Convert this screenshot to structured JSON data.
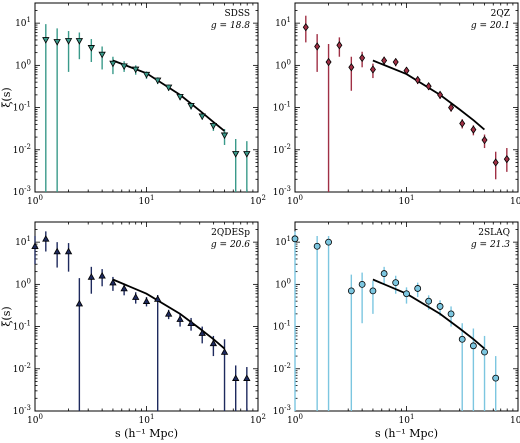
{
  "chart_data": [
    {
      "type": "scatter",
      "title": "",
      "label": "SDSS",
      "mag_text": "g = 18.8",
      "color": "#3a9a8a",
      "marker": "triangle-down",
      "xlabel": "s (h⁻¹ Mpc)",
      "ylabel": "ξ(s)",
      "xscale": "log",
      "yscale": "log",
      "xlim": [
        1,
        100
      ],
      "ylim": [
        0.001,
        30
      ],
      "points": [
        {
          "x": 1.25,
          "y": 4.0,
          "lo": 0.001,
          "hi": 9.5
        },
        {
          "x": 1.58,
          "y": 3.6,
          "lo": 0.001,
          "hi": 7.5
        },
        {
          "x": 2.0,
          "y": 3.8,
          "lo": 0.7,
          "hi": 6.5
        },
        {
          "x": 2.5,
          "y": 3.8,
          "lo": 1.4,
          "hi": 6.0
        },
        {
          "x": 3.2,
          "y": 2.6,
          "lo": 1.2,
          "hi": 4.2
        },
        {
          "x": 4.0,
          "y": 1.8,
          "lo": 0.8,
          "hi": 2.8
        },
        {
          "x": 5.0,
          "y": 1.1,
          "lo": 0.62,
          "hi": 1.6
        },
        {
          "x": 6.3,
          "y": 0.95,
          "lo": 0.7,
          "hi": 1.25
        },
        {
          "x": 8.0,
          "y": 0.8,
          "lo": 0.6,
          "hi": 1.0
        },
        {
          "x": 10.0,
          "y": 0.6,
          "lo": 0.48,
          "hi": 0.72
        },
        {
          "x": 12.6,
          "y": 0.44,
          "lo": 0.36,
          "hi": 0.52
        },
        {
          "x": 15.8,
          "y": 0.3,
          "lo": 0.25,
          "hi": 0.35
        },
        {
          "x": 20.0,
          "y": 0.18,
          "lo": 0.15,
          "hi": 0.21
        },
        {
          "x": 25.1,
          "y": 0.11,
          "lo": 0.09,
          "hi": 0.13
        },
        {
          "x": 31.6,
          "y": 0.062,
          "lo": 0.052,
          "hi": 0.074
        },
        {
          "x": 39.8,
          "y": 0.037,
          "lo": 0.028,
          "hi": 0.046
        },
        {
          "x": 50.1,
          "y": 0.022,
          "lo": 0.013,
          "hi": 0.031
        },
        {
          "x": 63.1,
          "y": 0.008,
          "lo": 0.001,
          "hi": 0.018
        },
        {
          "x": 79.4,
          "y": 0.008,
          "lo": 0.001,
          "hi": 0.016
        }
      ],
      "model": {
        "x": [
          5,
          10,
          20,
          30,
          40,
          50
        ],
        "y": [
          1.3,
          0.65,
          0.2,
          0.085,
          0.045,
          0.028
        ]
      }
    },
    {
      "type": "scatter",
      "title": "",
      "label": "2QZ",
      "mag_text": "g = 20.1",
      "color": "#a03045",
      "marker": "diamond",
      "xlabel": "s (h⁻¹ Mpc)",
      "ylabel": "ξ(s)",
      "xscale": "log",
      "yscale": "log",
      "xlim": [
        1,
        100
      ],
      "ylim": [
        0.001,
        30
      ],
      "points": [
        {
          "x": 1.25,
          "y": 8.0,
          "lo": 3.5,
          "hi": 15
        },
        {
          "x": 1.58,
          "y": 2.8,
          "lo": 0.7,
          "hi": 5.5
        },
        {
          "x": 2.0,
          "y": 1.2,
          "lo": 0.001,
          "hi": 3.2
        },
        {
          "x": 2.5,
          "y": 3.0,
          "lo": 1.6,
          "hi": 4.6
        },
        {
          "x": 3.2,
          "y": 0.9,
          "lo": 0.25,
          "hi": 1.6
        },
        {
          "x": 4.0,
          "y": 1.5,
          "lo": 0.9,
          "hi": 2.1
        },
        {
          "x": 5.0,
          "y": 0.8,
          "lo": 0.5,
          "hi": 1.1
        },
        {
          "x": 6.3,
          "y": 1.3,
          "lo": 1.0,
          "hi": 1.6
        },
        {
          "x": 8.0,
          "y": 1.2,
          "lo": 0.95,
          "hi": 1.45
        },
        {
          "x": 10.0,
          "y": 0.75,
          "lo": 0.6,
          "hi": 0.9
        },
        {
          "x": 12.6,
          "y": 0.45,
          "lo": 0.36,
          "hi": 0.54
        },
        {
          "x": 15.8,
          "y": 0.32,
          "lo": 0.26,
          "hi": 0.38
        },
        {
          "x": 20.0,
          "y": 0.2,
          "lo": 0.16,
          "hi": 0.24
        },
        {
          "x": 25.1,
          "y": 0.1,
          "lo": 0.08,
          "hi": 0.12
        },
        {
          "x": 31.6,
          "y": 0.042,
          "lo": 0.032,
          "hi": 0.053
        },
        {
          "x": 39.8,
          "y": 0.03,
          "lo": 0.022,
          "hi": 0.038
        },
        {
          "x": 50.1,
          "y": 0.017,
          "lo": 0.011,
          "hi": 0.023
        },
        {
          "x": 63.1,
          "y": 0.005,
          "lo": 0.002,
          "hi": 0.009
        },
        {
          "x": 79.4,
          "y": 0.006,
          "lo": 0.003,
          "hi": 0.011
        }
      ],
      "model": {
        "x": [
          5,
          10,
          20,
          30,
          40,
          50
        ],
        "y": [
          1.3,
          0.62,
          0.2,
          0.09,
          0.05,
          0.03
        ]
      }
    },
    {
      "type": "scatter",
      "title": "",
      "label": "2QDESp",
      "mag_text": "g = 20.6",
      "color": "#1e2a5e",
      "marker": "triangle-up",
      "xlabel": "s (h⁻¹ Mpc)",
      "ylabel": "ξ(s)",
      "xscale": "log",
      "yscale": "log",
      "xlim": [
        1,
        100
      ],
      "ylim": [
        0.001,
        30
      ],
      "points": [
        {
          "x": 1.0,
          "y": 8.0,
          "lo": 3.0,
          "hi": 14
        },
        {
          "x": 1.25,
          "y": 12.0,
          "lo": 6.0,
          "hi": 18
        },
        {
          "x": 1.58,
          "y": 6.0,
          "lo": 2.5,
          "hi": 10
        },
        {
          "x": 2.0,
          "y": 6.0,
          "lo": 2.0,
          "hi": 9.5
        },
        {
          "x": 2.5,
          "y": 0.35,
          "lo": 0.001,
          "hi": 1.4
        },
        {
          "x": 3.2,
          "y": 1.5,
          "lo": 0.6,
          "hi": 2.6
        },
        {
          "x": 4.0,
          "y": 1.6,
          "lo": 0.9,
          "hi": 2.3
        },
        {
          "x": 5.0,
          "y": 1.1,
          "lo": 0.7,
          "hi": 1.5
        },
        {
          "x": 6.3,
          "y": 0.8,
          "lo": 0.55,
          "hi": 1.05
        },
        {
          "x": 8.0,
          "y": 0.5,
          "lo": 0.35,
          "hi": 0.65
        },
        {
          "x": 10.0,
          "y": 0.4,
          "lo": 0.3,
          "hi": 0.5
        },
        {
          "x": 12.6,
          "y": 0.45,
          "lo": 0.001,
          "hi": 0.56
        },
        {
          "x": 15.8,
          "y": 0.2,
          "lo": 0.15,
          "hi": 0.25
        },
        {
          "x": 20.0,
          "y": 0.15,
          "lo": 0.1,
          "hi": 0.2
        },
        {
          "x": 25.1,
          "y": 0.12,
          "lo": 0.08,
          "hi": 0.16
        },
        {
          "x": 31.6,
          "y": 0.07,
          "lo": 0.04,
          "hi": 0.1
        },
        {
          "x": 39.8,
          "y": 0.04,
          "lo": 0.02,
          "hi": 0.06
        },
        {
          "x": 50.1,
          "y": 0.025,
          "lo": 0.001,
          "hi": 0.05
        },
        {
          "x": 63.1,
          "y": 0.006,
          "lo": 0.001,
          "hi": 0.012
        },
        {
          "x": 79.4,
          "y": 0.006,
          "lo": 0.001,
          "hi": 0.011
        }
      ],
      "model": {
        "x": [
          5,
          10,
          20,
          30,
          40,
          50
        ],
        "y": [
          1.3,
          0.6,
          0.2,
          0.09,
          0.05,
          0.03
        ]
      }
    },
    {
      "type": "scatter",
      "title": "",
      "label": "2SLAQ",
      "mag_text": "g = 21.3",
      "color": "#7cc6e0",
      "marker": "circle",
      "xlabel": "s (h⁻¹ Mpc)",
      "ylabel": "ξ(s)",
      "xscale": "log",
      "yscale": "log",
      "xlim": [
        1,
        100
      ],
      "ylim": [
        0.001,
        30
      ],
      "points": [
        {
          "x": 1.0,
          "y": 12.0,
          "lo": 0.001,
          "hi": 18
        },
        {
          "x": 1.58,
          "y": 8.0,
          "lo": 0.001,
          "hi": 14
        },
        {
          "x": 2.0,
          "y": 10.0,
          "lo": 0.001,
          "hi": 14
        },
        {
          "x": 3.2,
          "y": 0.7,
          "lo": 0.001,
          "hi": 1.7
        },
        {
          "x": 4.0,
          "y": 1.0,
          "lo": 0.12,
          "hi": 1.9
        },
        {
          "x": 5.0,
          "y": 0.7,
          "lo": 0.2,
          "hi": 1.2
        },
        {
          "x": 6.3,
          "y": 1.8,
          "lo": 1.0,
          "hi": 2.6
        },
        {
          "x": 8.0,
          "y": 1.1,
          "lo": 0.6,
          "hi": 1.6
        },
        {
          "x": 10.0,
          "y": 0.6,
          "lo": 0.35,
          "hi": 0.85
        },
        {
          "x": 12.6,
          "y": 0.8,
          "lo": 0.5,
          "hi": 1.1
        },
        {
          "x": 15.8,
          "y": 0.4,
          "lo": 0.25,
          "hi": 0.55
        },
        {
          "x": 20.0,
          "y": 0.3,
          "lo": 0.18,
          "hi": 0.42
        },
        {
          "x": 25.1,
          "y": 0.2,
          "lo": 0.1,
          "hi": 0.3
        },
        {
          "x": 31.6,
          "y": 0.05,
          "lo": 0.001,
          "hi": 0.12
        },
        {
          "x": 39.8,
          "y": 0.035,
          "lo": 0.001,
          "hi": 0.09
        },
        {
          "x": 50.1,
          "y": 0.025,
          "lo": 0.001,
          "hi": 0.06
        },
        {
          "x": 63.1,
          "y": 0.006,
          "lo": 0.001,
          "hi": 0.02
        }
      ],
      "model": {
        "x": [
          5,
          10,
          20,
          30,
          40,
          50
        ],
        "y": [
          1.3,
          0.6,
          0.2,
          0.09,
          0.05,
          0.03
        ]
      }
    }
  ]
}
